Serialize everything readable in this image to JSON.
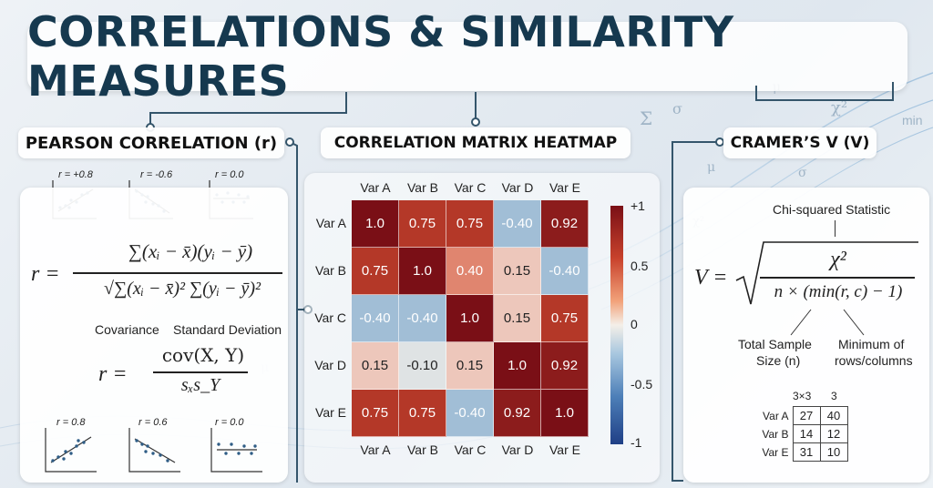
{
  "title": "CORRELATIONS & SIMILARITY MEASURES",
  "decor_symbols": [
    "Σ",
    "σ",
    "χ²",
    "min",
    "μ",
    "σ",
    "χ²",
    "μ",
    "μ"
  ],
  "pearson": {
    "header": "PEARSON CORRELATION (r)",
    "top_plots": [
      "r = +0.8",
      "r = -0.6",
      "r = 0.0"
    ],
    "bottom_plots": [
      "r = 0.8",
      "r = 0.6",
      "r = 0.0"
    ],
    "formula_lhs": "r =",
    "numerator": "∑(xᵢ − x̄)(yᵢ − ȳ)",
    "denominator": "√∑(xᵢ − x̄)² ∑(yᵢ − ȳ)²",
    "label_covariance": "Covariance",
    "label_std": "Standard Deviation",
    "formula2_lhs": "r =",
    "formula2_num": "cov(X, Y)",
    "formula2_den": "sₓs_Y"
  },
  "heatmap": {
    "header": "CORRELATION MATRIX HEATMAP",
    "colorbar_ticks": [
      "+1",
      "0.5",
      "0",
      "-0.5",
      "-1"
    ]
  },
  "chart_data": {
    "type": "heatmap",
    "title": "CORRELATION MATRIX HEATMAP",
    "x": [
      "Var A",
      "Var B",
      "Var C",
      "Var D",
      "Var E"
    ],
    "y": [
      "Var A",
      "Var B",
      "Var C",
      "Var D",
      "Var E"
    ],
    "values": [
      [
        "1.0",
        "0.75",
        "0.75",
        "-0.40",
        "0.92"
      ],
      [
        "0.75",
        "1.0",
        "0.40",
        "0.15",
        "-0.40"
      ],
      [
        "-0.40",
        "-0.40",
        "1.0",
        "0.15",
        "0.75"
      ],
      [
        "0.15",
        "-0.10",
        "0.15",
        "1.0",
        "0.92"
      ],
      [
        "0.75",
        "0.75",
        "-0.40",
        "0.92",
        "1.0"
      ]
    ],
    "zlim": [
      -1,
      1
    ],
    "colormap": {
      "neg": "#2b4f9c",
      "zero": "#f4efe8",
      "pos": "#7a0f16"
    }
  },
  "cramer": {
    "header": "CRAMER’S V (V)",
    "chi_label": "Chi-squared Statistic",
    "lhs": "V =",
    "numerator": "χ²",
    "denominator": "n × (min(r, c) − 1)",
    "label_total": [
      "Total Sample",
      "Size (n)"
    ],
    "label_min": [
      "Minimum of",
      "rows/columns"
    ],
    "table": {
      "col_headers": [
        "3×3",
        "3"
      ],
      "rows": [
        {
          "label": "Var A",
          "cells": [
            "27",
            "40"
          ]
        },
        {
          "label": "Var B",
          "cells": [
            "14",
            "12"
          ]
        },
        {
          "label": "Var E",
          "cells": [
            "31",
            "10"
          ]
        }
      ]
    }
  }
}
